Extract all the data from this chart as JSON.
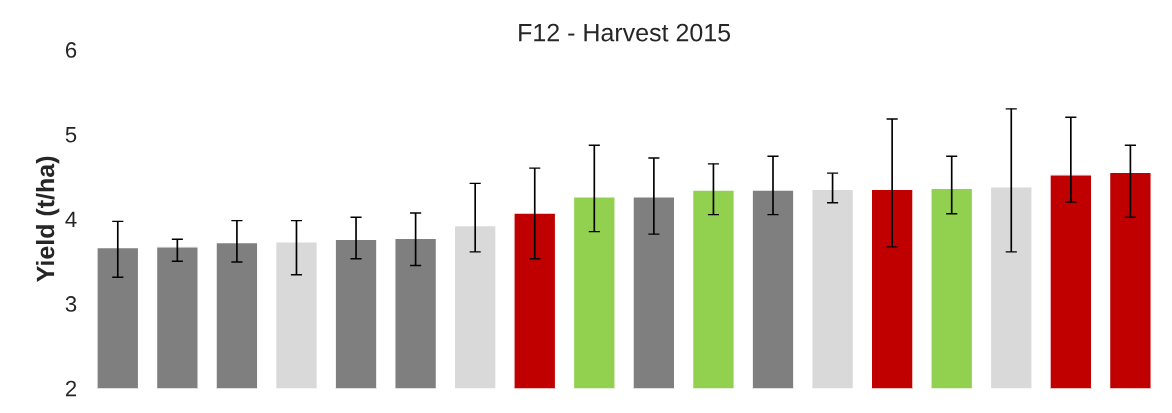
{
  "chart_data": {
    "type": "bar",
    "title": "F12 - Harvest 2015",
    "ylabel": "Yield (t/ha)",
    "categories": [
      null,
      null,
      null,
      null,
      null,
      null,
      null,
      null,
      null,
      null,
      null,
      null,
      null,
      null,
      null,
      null,
      null,
      null
    ],
    "values": [
      3.66,
      3.67,
      3.72,
      3.73,
      3.76,
      3.77,
      3.92,
      4.07,
      4.26,
      4.26,
      4.34,
      4.34,
      4.35,
      4.35,
      4.36,
      4.38,
      4.52,
      4.55
    ],
    "colors": [
      "#7f7f7f",
      "#7f7f7f",
      "#7f7f7f",
      "#d9d9d9",
      "#7f7f7f",
      "#7f7f7f",
      "#d9d9d9",
      "#c00000",
      "#92d050",
      "#7f7f7f",
      "#92d050",
      "#7f7f7f",
      "#d9d9d9",
      "#c00000",
      "#92d050",
      "#d9d9d9",
      "#c00000",
      "#c00000"
    ],
    "errors": [
      [
        3.31,
        3.97
      ],
      [
        3.5,
        3.76
      ],
      [
        3.49,
        3.98
      ],
      [
        3.34,
        3.98
      ],
      [
        3.53,
        4.02
      ],
      [
        3.45,
        4.07
      ],
      [
        3.61,
        4.42
      ],
      [
        3.53,
        4.6
      ],
      [
        3.85,
        4.87
      ],
      [
        3.82,
        4.72
      ],
      [
        4.05,
        4.65
      ],
      [
        4.05,
        4.74
      ],
      [
        4.19,
        4.54
      ],
      [
        3.67,
        5.18
      ],
      [
        4.06,
        4.74
      ],
      [
        3.61,
        5.3
      ],
      [
        4.2,
        5.2
      ],
      [
        4.02,
        4.87
      ]
    ],
    "ylim": [
      2,
      6
    ],
    "yticks": [
      2,
      3,
      4,
      5,
      6
    ],
    "grid": false,
    "legend": false
  }
}
